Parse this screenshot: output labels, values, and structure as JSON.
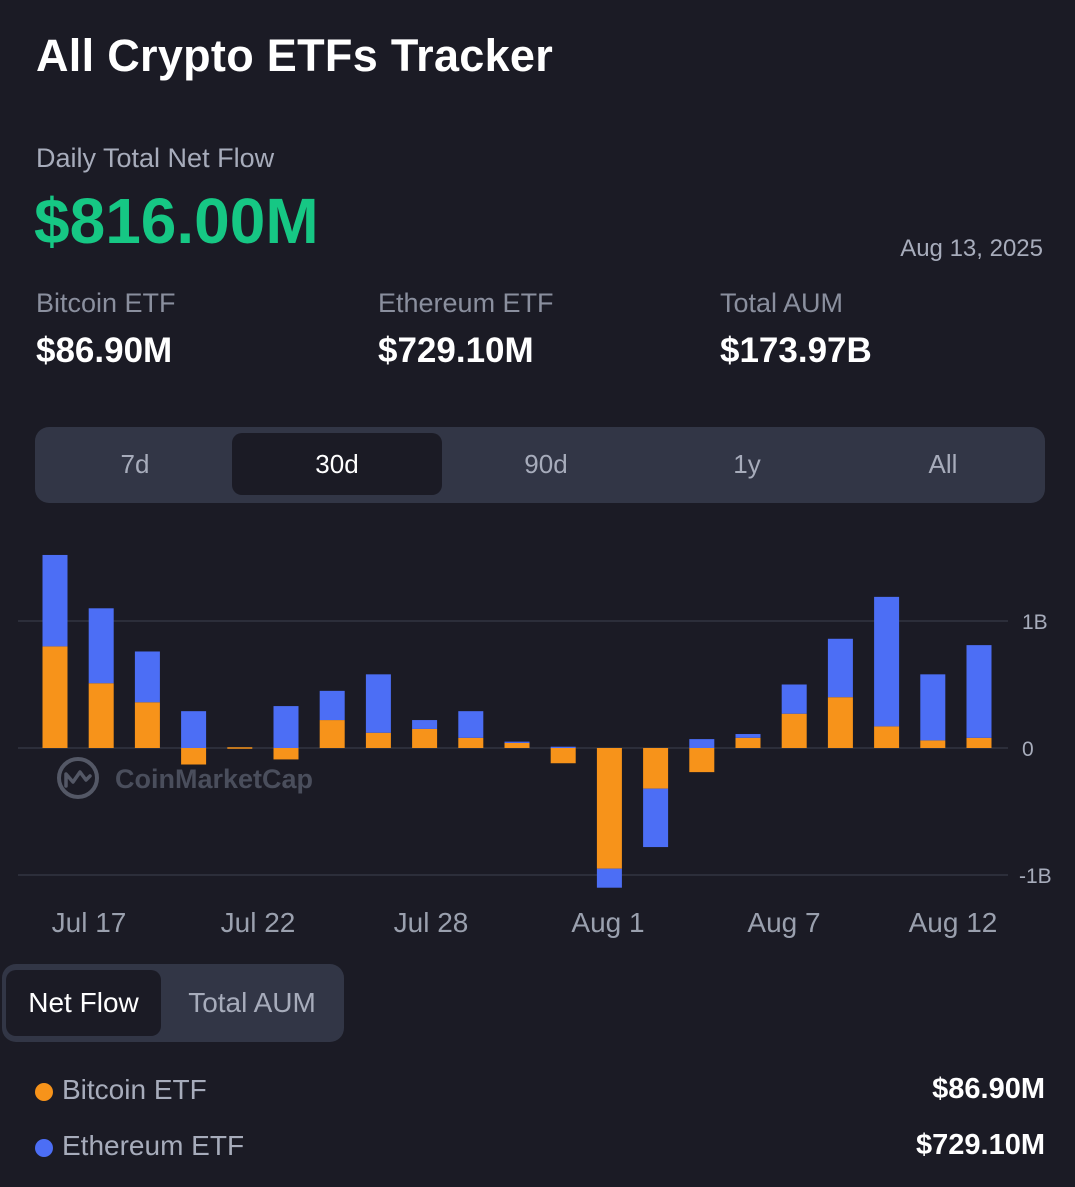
{
  "header": {
    "title": "All Crypto ETFs Tracker"
  },
  "daily": {
    "label": "Daily Total Net Flow",
    "value": "$816.00M",
    "date": "Aug 13, 2025",
    "value_color": "#16c784"
  },
  "stats": [
    {
      "label": "Bitcoin ETF",
      "value": "$86.90M"
    },
    {
      "label": "Ethereum ETF",
      "value": "$729.10M"
    },
    {
      "label": "Total AUM",
      "value": "$173.97B"
    }
  ],
  "range_tabs": [
    {
      "label": "7d",
      "active": false
    },
    {
      "label": "30d",
      "active": true
    },
    {
      "label": "90d",
      "active": false
    },
    {
      "label": "1y",
      "active": false
    },
    {
      "label": "All",
      "active": false
    }
  ],
  "watermark": "CoinMarketCap",
  "chart_data": {
    "type": "bar",
    "stacked": true,
    "x_tick_labels": [
      "Jul 17",
      "Jul 22",
      "Jul 28",
      "Aug 1",
      "Aug 7",
      "Aug 12"
    ],
    "y_tick_labels": [
      "1B",
      "0",
      "-1B"
    ],
    "ylim": [
      -1.0,
      1.5
    ],
    "grid": true,
    "series": [
      {
        "name": "Bitcoin ETF",
        "color": "#f7931a",
        "values": [
          0.8,
          0.51,
          0.36,
          -0.13,
          0,
          -0.09,
          0.22,
          0.12,
          0.15,
          0.08,
          0.04,
          -0.12,
          -0.95,
          -0.32,
          -0.19,
          0.08,
          0.27,
          0.4,
          0.17,
          0.06,
          0.08
        ]
      },
      {
        "name": "Ethereum ETF",
        "color": "#4c6ef5",
        "values": [
          0.72,
          0.59,
          0.4,
          0.29,
          0,
          0.33,
          0.23,
          0.46,
          0.07,
          0.21,
          0.01,
          0.01,
          -0.15,
          -0.46,
          0.07,
          0.03,
          0.23,
          0.46,
          1.02,
          0.52,
          0.73
        ]
      }
    ]
  },
  "view_toggle": [
    {
      "label": "Net Flow",
      "active": true
    },
    {
      "label": "Total AUM",
      "active": false
    }
  ],
  "legend": [
    {
      "name": "Bitcoin ETF",
      "value": "$86.90M",
      "color": "#f7931a"
    },
    {
      "name": "Ethereum ETF",
      "value": "$729.10M",
      "color": "#4c6ef5"
    }
  ]
}
